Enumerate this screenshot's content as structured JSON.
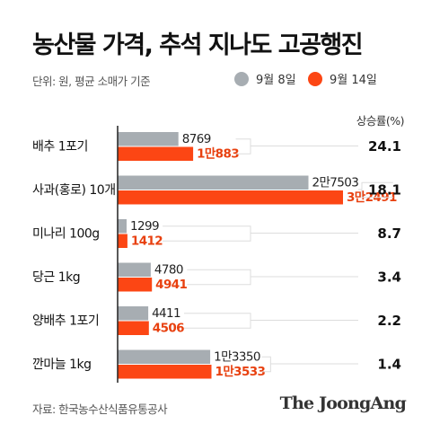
{
  "title": "농산물 가격, 추석 지나도 고공행진",
  "unit_note": "단위: 원, 평균 소매가 기준",
  "legend": [
    {
      "label": "9월 8일",
      "color": "#a7adb2"
    },
    {
      "label": "9월 14일",
      "color": "#fc4614"
    }
  ],
  "rate_header": "상승률(%)",
  "source": "자료: 한국농수산식품유통공사",
  "brand": "The JoongAng",
  "chart_data": {
    "type": "bar",
    "orientation": "horizontal",
    "categories": [
      "배추 1포기",
      "사과(홍로) 10개",
      "미나리 100g",
      "당근 1kg",
      "양배추 1포기",
      "깐마늘 1kg"
    ],
    "series": [
      {
        "name": "9월 8일",
        "values": [
          8769,
          27503,
          1299,
          4780,
          4411,
          13350
        ],
        "labels": [
          "8769",
          "2만7503",
          "1299",
          "4780",
          "4411",
          "1만3350"
        ],
        "color": "#a7adb2"
      },
      {
        "name": "9월 14일",
        "values": [
          10883,
          32491,
          1412,
          4941,
          4506,
          13533
        ],
        "labels": [
          "1만883",
          "3만2491",
          "1412",
          "4941",
          "4506",
          "1만3533"
        ],
        "color": "#fc4614"
      }
    ],
    "rates": [
      "24.1",
      "18.1",
      "8.7",
      "3.4",
      "2.2",
      "1.4"
    ],
    "rate_label": "상승률(%)",
    "grid": false
  }
}
